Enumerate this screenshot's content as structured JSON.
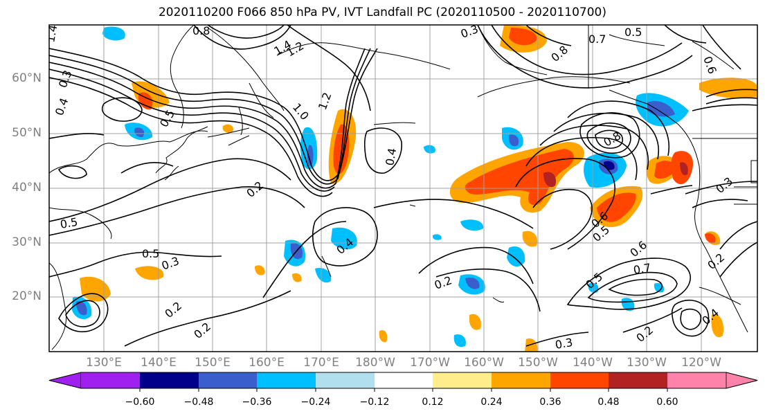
{
  "title": "2020110200 F066 850 hPa PV, IVT Landfall PC (2020110500 - 2020110700)",
  "map": {
    "lat_labels": [
      "60°N",
      "50°N",
      "40°N",
      "30°N",
      "20°N"
    ],
    "lon_labels": [
      "130°E",
      "140°E",
      "150°E",
      "160°E",
      "170°E",
      "180°W",
      "170°W",
      "160°W",
      "150°W",
      "140°W",
      "130°W",
      "120°W"
    ],
    "contour_labels": [
      "1.4",
      "0.8",
      "1.4",
      "1.2",
      "0.3",
      "0.5",
      "0.7",
      "0.6",
      "0.8",
      "0.4",
      "0.3",
      "0.5",
      "1.2",
      "1.0",
      "0.4",
      "0.2",
      "0.5",
      "0.5",
      "0.3",
      "0.4",
      "0.2",
      "0.2",
      "0.2",
      "0.3",
      "0.8",
      "0.5",
      "0.6",
      "0.7",
      "0.5",
      "0.2",
      "0.3",
      "0.2",
      "0.6",
      "0.4"
    ],
    "background_color": "#ffffff",
    "land_outline_color": "#000000",
    "grid_color": "#a0a0a0"
  },
  "colorbar": {
    "colors": [
      "#a020f0",
      "#00008b",
      "#3a5fcd",
      "#00bfff",
      "#b2dfee",
      "#ffffff",
      "#ffec8b",
      "#ffa500",
      "#ff4500",
      "#b22222",
      "#ff82ab"
    ],
    "tick_labels": [
      "−0.60",
      "−0.48",
      "−0.36",
      "−0.24",
      "−0.12",
      "0.12",
      "0.24",
      "0.36",
      "0.48",
      "0.60"
    ]
  }
}
